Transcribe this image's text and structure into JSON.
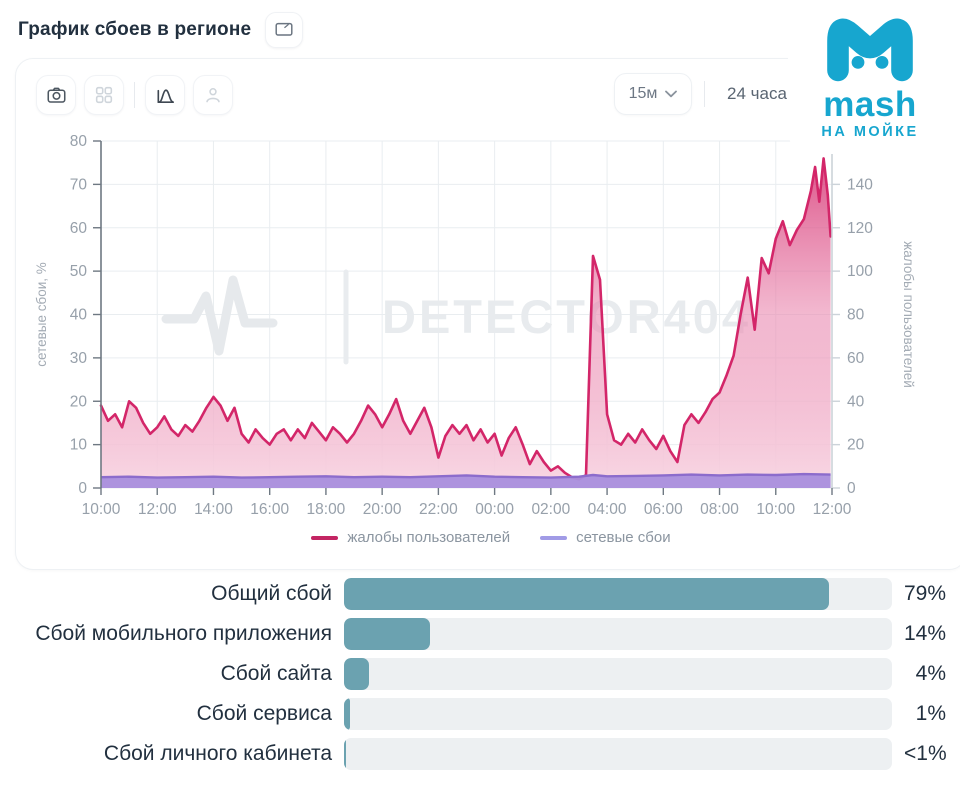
{
  "header": {
    "title": "График сбоев в регионе"
  },
  "toolbar": {
    "interval_value": "15м",
    "range_label": "24 часа",
    "icons": [
      "camera-icon",
      "grid-icon",
      "area-chart-icon",
      "person-icon"
    ]
  },
  "logo": {
    "name": "mash",
    "tagline": "НА МОЙКЕ",
    "color": "#17a6cf"
  },
  "watermark": {
    "text": "DETECTOR404"
  },
  "chart_data": {
    "type": "area",
    "x_range_hours": [
      0,
      26
    ],
    "x_ticks": [
      "10:00",
      "12:00",
      "14:00",
      "16:00",
      "18:00",
      "20:00",
      "22:00",
      "00:00",
      "02:00",
      "04:00",
      "06:00",
      "08:00",
      "10:00",
      "12:00"
    ],
    "left_axis": {
      "label": "сетевые сбои, %",
      "min": 0,
      "max": 80,
      "ticks": [
        0,
        10,
        20,
        30,
        40,
        50,
        60,
        70,
        80
      ]
    },
    "right_axis": {
      "label": "жалобы пользователей",
      "min": 0,
      "max": 160,
      "ticks": [
        0,
        20,
        40,
        60,
        80,
        100,
        120,
        140
      ]
    },
    "grid": true,
    "legend_position": "bottom",
    "series": [
      {
        "name": "жалобы пользователей",
        "axis": "right",
        "line_color": "#d32669",
        "legend_color": "#c32563",
        "fill_gradient": [
          "rgba(211,38,105,0.85)",
          "rgba(233,133,173,0.58)",
          "rgba(248,214,227,0.95)"
        ],
        "points": [
          [
            0,
            38
          ],
          [
            0.25,
            31
          ],
          [
            0.5,
            34
          ],
          [
            0.75,
            28
          ],
          [
            1,
            40
          ],
          [
            1.25,
            37
          ],
          [
            1.5,
            30
          ],
          [
            1.75,
            25
          ],
          [
            2,
            28
          ],
          [
            2.25,
            33
          ],
          [
            2.5,
            27
          ],
          [
            2.75,
            24
          ],
          [
            3,
            29
          ],
          [
            3.25,
            26
          ],
          [
            3.5,
            31
          ],
          [
            3.75,
            37
          ],
          [
            4,
            42
          ],
          [
            4.25,
            38
          ],
          [
            4.5,
            31
          ],
          [
            4.75,
            37
          ],
          [
            5,
            25
          ],
          [
            5.25,
            21
          ],
          [
            5.5,
            27
          ],
          [
            5.75,
            23
          ],
          [
            6,
            20
          ],
          [
            6.25,
            25
          ],
          [
            6.5,
            27
          ],
          [
            6.75,
            22
          ],
          [
            7,
            27
          ],
          [
            7.25,
            23
          ],
          [
            7.5,
            30
          ],
          [
            7.75,
            26
          ],
          [
            8,
            22
          ],
          [
            8.25,
            28
          ],
          [
            8.5,
            25
          ],
          [
            8.75,
            21
          ],
          [
            9,
            25
          ],
          [
            9.25,
            31
          ],
          [
            9.5,
            38
          ],
          [
            9.75,
            34
          ],
          [
            10,
            28
          ],
          [
            10.25,
            34
          ],
          [
            10.5,
            41
          ],
          [
            10.75,
            31
          ],
          [
            11,
            25
          ],
          [
            11.25,
            31
          ],
          [
            11.5,
            37
          ],
          [
            11.75,
            28
          ],
          [
            12,
            14
          ],
          [
            12.25,
            24
          ],
          [
            12.5,
            29
          ],
          [
            12.75,
            25
          ],
          [
            13,
            29
          ],
          [
            13.25,
            22
          ],
          [
            13.5,
            27
          ],
          [
            13.75,
            21
          ],
          [
            14,
            25
          ],
          [
            14.25,
            15
          ],
          [
            14.5,
            23
          ],
          [
            14.75,
            28
          ],
          [
            15,
            20
          ],
          [
            15.25,
            11
          ],
          [
            15.5,
            17
          ],
          [
            15.75,
            12
          ],
          [
            16,
            8
          ],
          [
            16.25,
            10
          ],
          [
            16.5,
            7
          ],
          [
            16.75,
            5
          ],
          [
            17,
            4
          ],
          [
            17.25,
            6
          ],
          [
            17.5,
            107
          ],
          [
            17.75,
            96
          ],
          [
            18,
            34
          ],
          [
            18.25,
            22
          ],
          [
            18.5,
            20
          ],
          [
            18.75,
            25
          ],
          [
            19,
            21
          ],
          [
            19.25,
            27
          ],
          [
            19.5,
            22
          ],
          [
            19.75,
            18
          ],
          [
            20,
            24
          ],
          [
            20.25,
            17
          ],
          [
            20.5,
            12
          ],
          [
            20.75,
            29
          ],
          [
            21,
            34
          ],
          [
            21.25,
            30
          ],
          [
            21.5,
            35
          ],
          [
            21.75,
            41
          ],
          [
            22,
            44
          ],
          [
            22.25,
            52
          ],
          [
            22.5,
            61
          ],
          [
            22.75,
            80
          ],
          [
            23,
            97
          ],
          [
            23.25,
            73
          ],
          [
            23.5,
            106
          ],
          [
            23.75,
            99
          ],
          [
            24,
            115
          ],
          [
            24.25,
            123
          ],
          [
            24.5,
            112
          ],
          [
            24.75,
            119
          ],
          [
            25,
            124
          ],
          [
            25.25,
            137
          ],
          [
            25.4,
            148
          ],
          [
            25.55,
            132
          ],
          [
            25.7,
            152
          ],
          [
            25.85,
            135
          ],
          [
            25.95,
            116
          ]
        ]
      },
      {
        "name": "сетевые сбои",
        "axis": "left",
        "line_color": "#8c6ccc",
        "legend_color": "#a19be6",
        "fill_color": "rgba(169,143,221,0.95)",
        "points": [
          [
            0,
            2.5
          ],
          [
            1,
            2.6
          ],
          [
            2,
            2.4
          ],
          [
            3,
            2.5
          ],
          [
            4,
            2.6
          ],
          [
            5,
            2.4
          ],
          [
            6,
            2.5
          ],
          [
            7,
            2.6
          ],
          [
            8,
            2.7
          ],
          [
            9,
            2.5
          ],
          [
            10,
            2.6
          ],
          [
            11,
            2.5
          ],
          [
            12,
            2.7
          ],
          [
            13,
            2.9
          ],
          [
            14,
            2.6
          ],
          [
            15,
            2.5
          ],
          [
            16,
            2.4
          ],
          [
            17,
            2.6
          ],
          [
            17.5,
            3.0
          ],
          [
            18,
            2.7
          ],
          [
            19,
            2.8
          ],
          [
            20,
            2.9
          ],
          [
            21,
            3.1
          ],
          [
            22,
            2.9
          ],
          [
            23,
            3.1
          ],
          [
            24,
            3.0
          ],
          [
            25,
            3.2
          ],
          [
            25.95,
            3.1
          ]
        ]
      }
    ]
  },
  "bars": {
    "fill_color": "#6ba2b0",
    "track_color": "#edf0f2",
    "items": [
      {
        "label": "Общий сбой",
        "value_label": "79%",
        "pct": 79
      },
      {
        "label": "Сбой мобильного приложения",
        "value_label": "14%",
        "pct": 14
      },
      {
        "label": "Сбой сайта",
        "value_label": "4%",
        "pct": 4
      },
      {
        "label": "Сбой сервиса",
        "value_label": "1%",
        "pct": 1
      },
      {
        "label": "Сбой личного кабинета",
        "value_label": "<1%",
        "pct": 0.4
      }
    ]
  },
  "colors": {
    "grid": "#e9edf0",
    "tick_text": "#97a0aa",
    "axis_dark": "#6e7882",
    "axis_light": "#ccd3d9",
    "watermark": "#e8ebee"
  }
}
